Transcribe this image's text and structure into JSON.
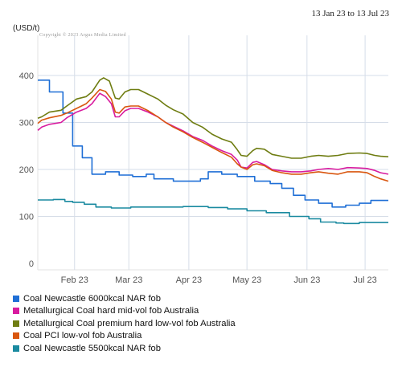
{
  "date_range": "13 Jan 23 to 13 Jul 23",
  "copyright": "Copyright © 2023 Argus Media Limited",
  "chart_data": {
    "type": "line",
    "ylabel": "(USD/t)",
    "ylim": [
      0,
      450
    ],
    "yticks": [
      0,
      100,
      200,
      300,
      400
    ],
    "xticks": [
      {
        "label": "Feb 23",
        "x": 19
      },
      {
        "label": "Mar 23",
        "x": 47
      },
      {
        "label": "Apr 23",
        "x": 78
      },
      {
        "label": "May 23",
        "x": 108
      },
      {
        "label": "Jun 23",
        "x": 139
      },
      {
        "label": "Jul 23",
        "x": 169
      }
    ],
    "xlim": [
      0,
      181
    ],
    "grid": true,
    "legend_placement": "bottom",
    "series": [
      {
        "name": "Coal Newcastle 6000kcal NAR fob",
        "color": "#1f6fd6",
        "step": true,
        "points": [
          [
            0,
            390
          ],
          [
            6,
            390
          ],
          [
            6,
            365
          ],
          [
            13,
            365
          ],
          [
            13,
            320
          ],
          [
            18,
            320
          ],
          [
            18,
            250
          ],
          [
            23,
            250
          ],
          [
            23,
            225
          ],
          [
            28,
            225
          ],
          [
            28,
            190
          ],
          [
            35,
            190
          ],
          [
            35,
            195
          ],
          [
            42,
            195
          ],
          [
            42,
            188
          ],
          [
            49,
            188
          ],
          [
            49,
            185
          ],
          [
            56,
            185
          ],
          [
            56,
            190
          ],
          [
            60,
            190
          ],
          [
            60,
            180
          ],
          [
            70,
            180
          ],
          [
            70,
            175
          ],
          [
            84,
            175
          ],
          [
            84,
            180
          ],
          [
            88,
            180
          ],
          [
            88,
            195
          ],
          [
            95,
            195
          ],
          [
            95,
            190
          ],
          [
            103,
            190
          ],
          [
            103,
            185
          ],
          [
            112,
            185
          ],
          [
            112,
            175
          ],
          [
            120,
            175
          ],
          [
            120,
            170
          ],
          [
            126,
            170
          ],
          [
            126,
            160
          ],
          [
            132,
            160
          ],
          [
            132,
            145
          ],
          [
            138,
            145
          ],
          [
            138,
            135
          ],
          [
            145,
            135
          ],
          [
            145,
            128
          ],
          [
            152,
            128
          ],
          [
            152,
            120
          ],
          [
            159,
            120
          ],
          [
            159,
            124
          ],
          [
            166,
            124
          ],
          [
            166,
            128
          ],
          [
            172,
            128
          ],
          [
            172,
            134
          ],
          [
            181,
            134
          ]
        ]
      },
      {
        "name": "Metallurgical Coal hard mid-vol fob Australia",
        "color": "#d81b9f",
        "points": [
          [
            0,
            283
          ],
          [
            2,
            290
          ],
          [
            6,
            296
          ],
          [
            12,
            300
          ],
          [
            15,
            310
          ],
          [
            20,
            322
          ],
          [
            25,
            330
          ],
          [
            28,
            340
          ],
          [
            32,
            362
          ],
          [
            35,
            355
          ],
          [
            38,
            340
          ],
          [
            40,
            312
          ],
          [
            42,
            312
          ],
          [
            45,
            325
          ],
          [
            48,
            330
          ],
          [
            52,
            330
          ],
          [
            57,
            322
          ],
          [
            62,
            312
          ],
          [
            66,
            300
          ],
          [
            70,
            292
          ],
          [
            75,
            282
          ],
          [
            80,
            270
          ],
          [
            85,
            262
          ],
          [
            90,
            250
          ],
          [
            95,
            240
          ],
          [
            100,
            232
          ],
          [
            103,
            220
          ],
          [
            105,
            205
          ],
          [
            108,
            203
          ],
          [
            111,
            215
          ],
          [
            113,
            217
          ],
          [
            117,
            210
          ],
          [
            121,
            200
          ],
          [
            126,
            197
          ],
          [
            131,
            195
          ],
          [
            136,
            195
          ],
          [
            141,
            197
          ],
          [
            145,
            200
          ],
          [
            150,
            202
          ],
          [
            155,
            200
          ],
          [
            160,
            204
          ],
          [
            166,
            203
          ],
          [
            170,
            202
          ],
          [
            174,
            198
          ],
          [
            177,
            193
          ],
          [
            181,
            190
          ]
        ]
      },
      {
        "name": "Metallurgical Coal premium hard low-vol fob Australia",
        "color": "#6f7d12",
        "points": [
          [
            0,
            309
          ],
          [
            2,
            312
          ],
          [
            6,
            322
          ],
          [
            12,
            326
          ],
          [
            15,
            335
          ],
          [
            20,
            350
          ],
          [
            25,
            355
          ],
          [
            28,
            365
          ],
          [
            32,
            390
          ],
          [
            34,
            395
          ],
          [
            37,
            388
          ],
          [
            40,
            352
          ],
          [
            42,
            350
          ],
          [
            45,
            365
          ],
          [
            48,
            370
          ],
          [
            52,
            370
          ],
          [
            57,
            360
          ],
          [
            62,
            350
          ],
          [
            66,
            337
          ],
          [
            70,
            327
          ],
          [
            75,
            318
          ],
          [
            80,
            300
          ],
          [
            85,
            290
          ],
          [
            90,
            275
          ],
          [
            95,
            265
          ],
          [
            100,
            258
          ],
          [
            103,
            242
          ],
          [
            105,
            230
          ],
          [
            108,
            228
          ],
          [
            111,
            240
          ],
          [
            113,
            245
          ],
          [
            117,
            243
          ],
          [
            121,
            232
          ],
          [
            126,
            228
          ],
          [
            131,
            224
          ],
          [
            136,
            224
          ],
          [
            141,
            228
          ],
          [
            145,
            230
          ],
          [
            150,
            228
          ],
          [
            155,
            230
          ],
          [
            160,
            234
          ],
          [
            166,
            235
          ],
          [
            170,
            234
          ],
          [
            174,
            230
          ],
          [
            177,
            228
          ],
          [
            181,
            227
          ]
        ]
      },
      {
        "name": "Coal PCI low-vol fob Australia",
        "color": "#d9560f",
        "points": [
          [
            0,
            298
          ],
          [
            2,
            305
          ],
          [
            6,
            310
          ],
          [
            12,
            315
          ],
          [
            15,
            320
          ],
          [
            20,
            330
          ],
          [
            25,
            340
          ],
          [
            28,
            352
          ],
          [
            32,
            370
          ],
          [
            35,
            366
          ],
          [
            38,
            350
          ],
          [
            40,
            322
          ],
          [
            42,
            320
          ],
          [
            45,
            333
          ],
          [
            48,
            335
          ],
          [
            52,
            335
          ],
          [
            57,
            325
          ],
          [
            62,
            312
          ],
          [
            66,
            300
          ],
          [
            70,
            290
          ],
          [
            75,
            280
          ],
          [
            80,
            268
          ],
          [
            85,
            258
          ],
          [
            90,
            247
          ],
          [
            95,
            236
          ],
          [
            100,
            226
          ],
          [
            103,
            212
          ],
          [
            105,
            205
          ],
          [
            108,
            200
          ],
          [
            111,
            210
          ],
          [
            113,
            212
          ],
          [
            117,
            208
          ],
          [
            121,
            198
          ],
          [
            126,
            193
          ],
          [
            131,
            190
          ],
          [
            136,
            190
          ],
          [
            141,
            193
          ],
          [
            145,
            195
          ],
          [
            150,
            192
          ],
          [
            155,
            190
          ],
          [
            160,
            195
          ],
          [
            166,
            195
          ],
          [
            170,
            193
          ],
          [
            174,
            185
          ],
          [
            177,
            180
          ],
          [
            181,
            175
          ]
        ]
      },
      {
        "name": "Coal Newcastle 5500kcal NAR fob",
        "color": "#1a8aa0",
        "step": true,
        "points": [
          [
            0,
            135
          ],
          [
            8,
            135
          ],
          [
            8,
            136
          ],
          [
            14,
            136
          ],
          [
            14,
            132
          ],
          [
            18,
            132
          ],
          [
            18,
            130
          ],
          [
            24,
            130
          ],
          [
            24,
            126
          ],
          [
            30,
            126
          ],
          [
            30,
            120
          ],
          [
            38,
            120
          ],
          [
            38,
            118
          ],
          [
            48,
            118
          ],
          [
            48,
            120
          ],
          [
            75,
            120
          ],
          [
            75,
            121
          ],
          [
            88,
            121
          ],
          [
            88,
            119
          ],
          [
            98,
            119
          ],
          [
            98,
            116
          ],
          [
            108,
            116
          ],
          [
            108,
            112
          ],
          [
            118,
            112
          ],
          [
            118,
            108
          ],
          [
            130,
            108
          ],
          [
            130,
            100
          ],
          [
            140,
            100
          ],
          [
            140,
            95
          ],
          [
            146,
            95
          ],
          [
            146,
            88
          ],
          [
            154,
            88
          ],
          [
            154,
            86
          ],
          [
            158,
            86
          ],
          [
            158,
            85
          ],
          [
            166,
            85
          ],
          [
            166,
            87
          ],
          [
            181,
            87
          ]
        ]
      }
    ]
  }
}
